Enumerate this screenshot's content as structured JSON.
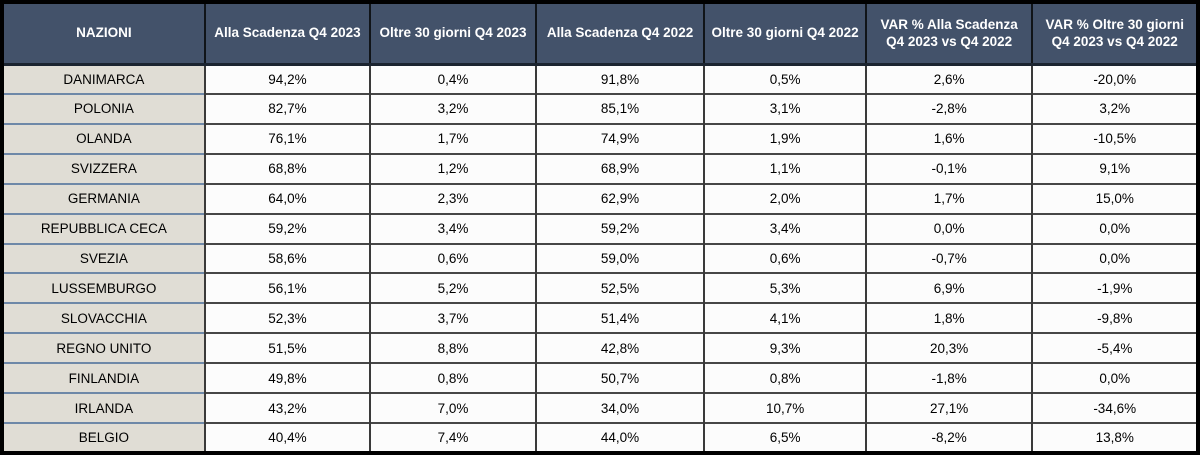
{
  "colors": {
    "header_bg": "#43526A",
    "header_text": "#FFFFFF",
    "nation_column_bg": "#E0DDD5",
    "data_cell_bg": "#FCFCFC",
    "nation_row_separator_blue": "#6E88A8",
    "data_row_separator_dark": "#474747",
    "outer_border": "#000000"
  },
  "chart_data": {
    "type": "table",
    "columns": [
      "NAZIONI",
      "Alla Scadenza Q4 2023",
      "Oltre 30 giorni Q4 2023",
      "Alla Scadenza Q4 2022",
      "Oltre 30 giorni Q4 2022",
      "VAR % Alla Scadenza Q4 2023 vs Q4 2022",
      "VAR % Oltre 30 giorni Q4 2023 vs Q4 2022"
    ],
    "rows": [
      {
        "nazione": "DANIMARCA",
        "values": [
          "94,2%",
          "0,4%",
          "91,8%",
          "0,5%",
          "2,6%",
          "-20,0%"
        ]
      },
      {
        "nazione": "POLONIA",
        "values": [
          "82,7%",
          "3,2%",
          "85,1%",
          "3,1%",
          "-2,8%",
          "3,2%"
        ]
      },
      {
        "nazione": "OLANDA",
        "values": [
          "76,1%",
          "1,7%",
          "74,9%",
          "1,9%",
          "1,6%",
          "-10,5%"
        ]
      },
      {
        "nazione": "SVIZZERA",
        "values": [
          "68,8%",
          "1,2%",
          "68,9%",
          "1,1%",
          "-0,1%",
          "9,1%"
        ]
      },
      {
        "nazione": "GERMANIA",
        "values": [
          "64,0%",
          "2,3%",
          "62,9%",
          "2,0%",
          "1,7%",
          "15,0%"
        ]
      },
      {
        "nazione": "REPUBBLICA CECA",
        "values": [
          "59,2%",
          "3,4%",
          "59,2%",
          "3,4%",
          "0,0%",
          "0,0%"
        ]
      },
      {
        "nazione": "SVEZIA",
        "values": [
          "58,6%",
          "0,6%",
          "59,0%",
          "0,6%",
          "-0,7%",
          "0,0%"
        ]
      },
      {
        "nazione": "LUSSEMBURGO",
        "values": [
          "56,1%",
          "5,2%",
          "52,5%",
          "5,3%",
          "6,9%",
          "-1,9%"
        ]
      },
      {
        "nazione": "SLOVACCHIA",
        "values": [
          "52,3%",
          "3,7%",
          "51,4%",
          "4,1%",
          "1,8%",
          "-9,8%"
        ]
      },
      {
        "nazione": "REGNO UNITO",
        "values": [
          "51,5%",
          "8,8%",
          "42,8%",
          "9,3%",
          "20,3%",
          "-5,4%"
        ]
      },
      {
        "nazione": "FINLANDIA",
        "values": [
          "49,8%",
          "0,8%",
          "50,7%",
          "0,8%",
          "-1,8%",
          "0,0%"
        ]
      },
      {
        "nazione": "IRLANDA",
        "values": [
          "43,2%",
          "7,0%",
          "34,0%",
          "10,7%",
          "27,1%",
          "-34,6%"
        ]
      },
      {
        "nazione": "BELGIO",
        "values": [
          "40,4%",
          "7,4%",
          "44,0%",
          "6,5%",
          "-8,2%",
          "13,8%"
        ]
      }
    ]
  }
}
